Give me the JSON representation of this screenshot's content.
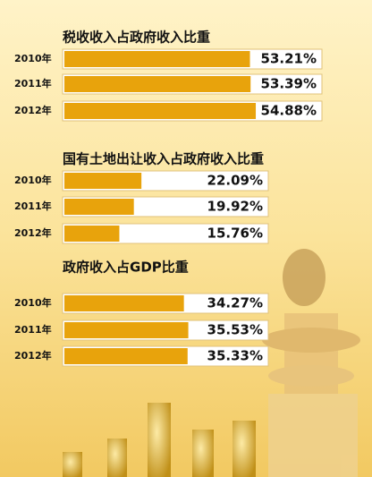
{
  "chart_data": [
    {
      "type": "bar",
      "title": "税收收入占政府收入比重",
      "categories": [
        "2010年",
        "2011年",
        "2012年"
      ],
      "values": [
        53.21,
        53.39,
        54.88
      ],
      "value_labels": [
        "53.21%",
        "53.39%",
        "54.88%"
      ],
      "color": "#e8a30c"
    },
    {
      "type": "bar",
      "title": "国有土地出让收入占政府收入比重",
      "categories": [
        "2010年",
        "2011年",
        "2012年"
      ],
      "values": [
        22.09,
        19.92,
        15.76
      ],
      "value_labels": [
        "22.09%",
        "19.92%",
        "15.76%"
      ],
      "color": "#e8a30c"
    },
    {
      "type": "bar",
      "title": "政府收入占GDP比重",
      "categories": [
        "2010年",
        "2011年",
        "2012年"
      ],
      "values": [
        34.27,
        35.53,
        35.33
      ],
      "value_labels": [
        "34.27%",
        "35.53%",
        "35.33%"
      ],
      "color": "#e8a30c"
    }
  ]
}
